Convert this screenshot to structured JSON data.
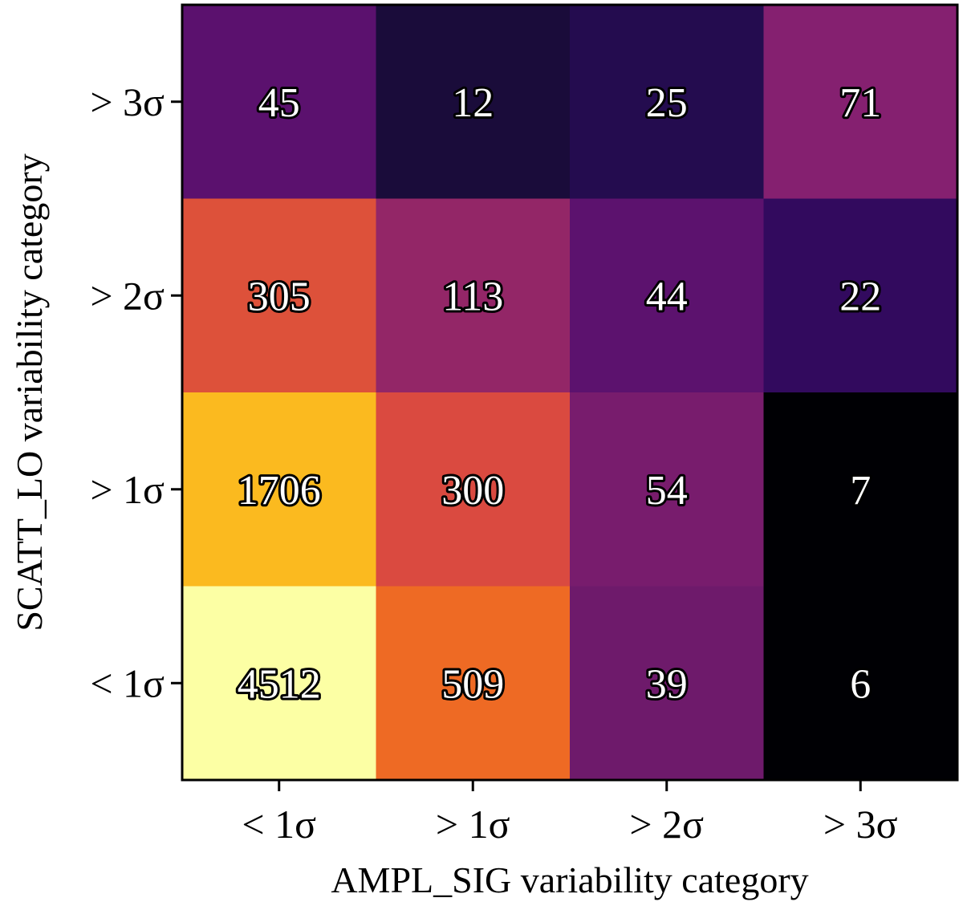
{
  "chart_data": {
    "type": "heatmap",
    "title": "",
    "xlabel": "AMPL_SIG variability category",
    "ylabel": "SCATT_LO variability category",
    "x_categories": [
      "< 1σ",
      "> 1σ",
      "> 2σ",
      "> 3σ"
    ],
    "y_categories_top_to_bottom": [
      "> 3σ",
      "> 2σ",
      "> 1σ",
      "< 1σ"
    ],
    "values_top_to_bottom": [
      [
        45,
        12,
        25,
        71
      ],
      [
        305,
        113,
        44,
        22
      ],
      [
        1706,
        300,
        54,
        7
      ],
      [
        4512,
        509,
        39,
        6
      ]
    ],
    "colormap": "inferno",
    "color_scale": "log",
    "grid": false
  },
  "colors": {
    "cells_top_to_bottom": [
      [
        "#5b116e",
        "#1a0c3a",
        "#240c4f",
        "#852070"
      ],
      [
        "#dd513a",
        "#932667",
        "#5c126e",
        "#320a5e"
      ],
      [
        "#fbba1f",
        "#da4a40",
        "#781c6d",
        "#000004"
      ],
      [
        "#fcffa4",
        "#ee6a24",
        "#6e1a6b",
        "#000004"
      ]
    ]
  }
}
